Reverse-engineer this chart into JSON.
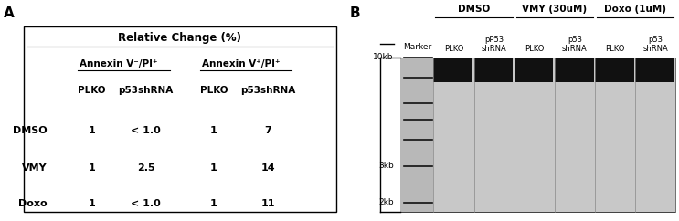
{
  "panel_A_label": "A",
  "panel_B_label": "B",
  "table_title": "Relative Change (%)",
  "col_group1": "Annexin V⁻/PI⁺",
  "col_group2": "Annexin V⁺/PI⁺",
  "col_headers": [
    "PLKO",
    "p53shRNA",
    "PLKO",
    "p53shRNA"
  ],
  "row_labels": [
    "DMSO",
    "VMY",
    "Doxo"
  ],
  "data": [
    [
      "1",
      "< 1.0",
      "1",
      "7"
    ],
    [
      "1",
      "2.5",
      "1",
      "14"
    ],
    [
      "1",
      "< 1.0",
      "1",
      "11"
    ]
  ],
  "gel_title_dmso": "DMSO",
  "gel_title_vmy": "VMY (30uM)",
  "gel_title_doxo": "Doxo (1uM)",
  "gel_marker_label": "Marker",
  "gel_col_labels_dmso": [
    "PLKO",
    "pP53\nshRNA"
  ],
  "gel_col_labels_vmy": [
    "PLKO",
    "p53\nshRNA"
  ],
  "gel_col_labels_doxo": [
    "PLKO",
    "p53\nshRNA"
  ],
  "gel_size_labels": [
    "10kb",
    "3kb",
    "2kb"
  ],
  "gel_size_values": [
    10,
    3,
    2
  ],
  "marker_sizes": [
    10,
    8,
    6,
    5,
    4,
    3,
    2
  ],
  "bg_color": "#ffffff",
  "text_color": "#000000",
  "gel_bg": "#c8c8c8",
  "marker_bg": "#b8b8b8",
  "band_dark": "#111111"
}
